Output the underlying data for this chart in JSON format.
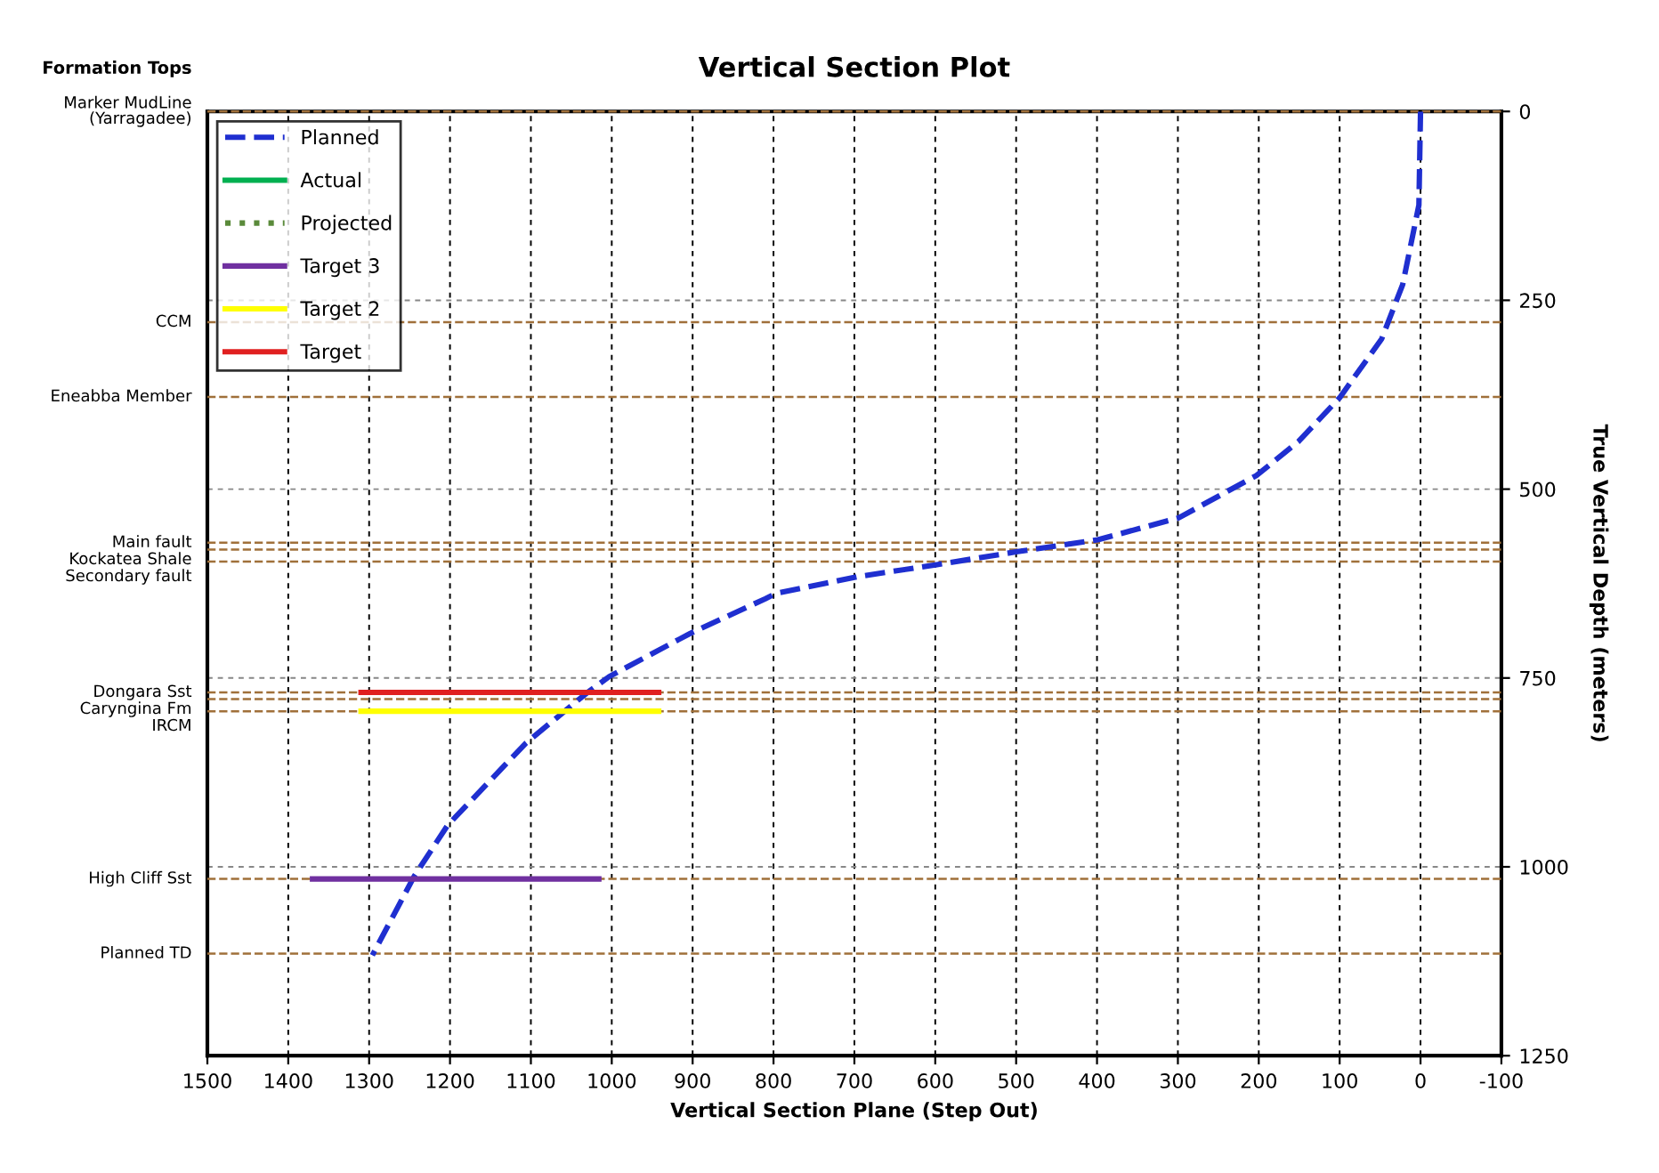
{
  "chart_data": {
    "type": "line",
    "title": "Vertical Section Plot",
    "xlabel": "Vertical Section Plane (Step Out)",
    "ylabel": "True Vertical Depth (meters)",
    "xlim": [
      1500,
      -100
    ],
    "xticks": [
      1500,
      1400,
      1300,
      1200,
      1100,
      1000,
      900,
      800,
      700,
      600,
      500,
      400,
      300,
      200,
      100,
      0,
      -100
    ],
    "ylim": [
      1250,
      0
    ],
    "yticks": [
      0,
      250,
      500,
      750,
      1000,
      1250
    ],
    "grid": true,
    "legend": "top left",
    "marker": "none",
    "annotations": [
      "Formation Tops"
    ],
    "series": [
      {
        "name": "Planned",
        "color": "#1f2fd0",
        "line_style": "dashed",
        "x": [
          0,
          2,
          22,
          48,
          100,
          151,
          203,
          299,
          399,
          500,
          598,
          697,
          797,
          810,
          903,
          1003,
          1031,
          1106,
          1203,
          1244,
          1296
        ],
        "values": [
          0,
          124,
          229,
          301,
          379,
          437,
          482,
          538,
          567,
          583,
          600,
          616,
          638,
          645,
          691,
          748,
          770,
          836,
          945,
          1012,
          1117
        ]
      },
      {
        "name": "Actual",
        "color": "#00b050",
        "line_style": "solid"
      },
      {
        "name": "Projected",
        "color": "#5a8a3a",
        "line_style": "dotted"
      },
      {
        "name": "Target 3",
        "color": "#7030a0",
        "line_style": "solid",
        "x": [
          1370,
          1016
        ],
        "values": [
          1016,
          1016
        ]
      },
      {
        "name": "Target 2",
        "color": "#ffff00",
        "line_style": "solid",
        "x": [
          1310,
          942
        ],
        "values": [
          794,
          794
        ]
      },
      {
        "name": "Target",
        "color": "#e02020",
        "line_style": "solid",
        "x": [
          1310,
          942
        ],
        "values": [
          769,
          769
        ]
      }
    ],
    "ref_lines": [
      {
        "axis": "y",
        "value": 0,
        "label": "Marker MudLine\n(Yarragadee)",
        "color": "#a0703a",
        "line_style": "dashed"
      },
      {
        "axis": "y",
        "value": 279,
        "label": "CCM",
        "color": "#a0703a",
        "line_style": "dashed"
      },
      {
        "axis": "y",
        "value": 378,
        "label": "Eneabba Member",
        "color": "#a0703a",
        "line_style": "dashed"
      },
      {
        "axis": "y",
        "value": 571,
        "label": "Main fault",
        "color": "#a0703a",
        "line_style": "dashed"
      },
      {
        "axis": "y",
        "value": 580,
        "label": "Kockatea Shale",
        "color": "#a0703a",
        "line_style": "dashed"
      },
      {
        "axis": "y",
        "value": 596,
        "label": "Secondary fault",
        "color": "#a0703a",
        "line_style": "dashed"
      },
      {
        "axis": "y",
        "value": 769,
        "label": "Dongara Sst",
        "color": "#a0703a",
        "line_style": "dashed"
      },
      {
        "axis": "y",
        "value": 778,
        "label": "Caryngina Fm",
        "color": "#a0703a",
        "line_style": "dashed"
      },
      {
        "axis": "y",
        "value": 794,
        "label": "IRCM",
        "color": "#a0703a",
        "line_style": "dashed"
      },
      {
        "axis": "y",
        "value": 1016,
        "label": "High Cliff Sst",
        "color": "#a0703a",
        "line_style": "dashed"
      },
      {
        "axis": "y",
        "value": 1115,
        "label": "Planned TD",
        "color": "#a0703a",
        "line_style": "dashed"
      }
    ]
  }
}
